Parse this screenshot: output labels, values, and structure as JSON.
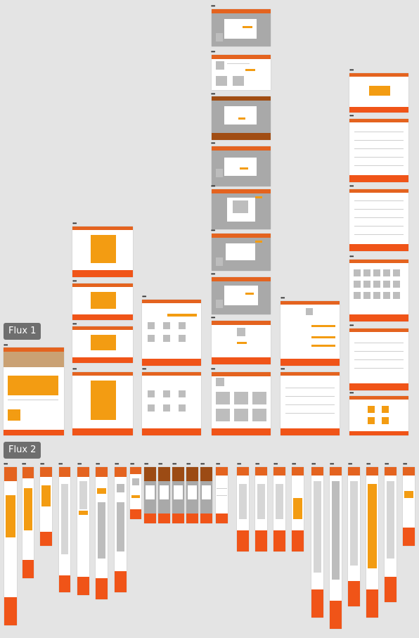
{
  "canvas": {
    "background": "#e4e4e4"
  },
  "flows": [
    {
      "label": "Flux 1"
    },
    {
      "label": "Flux 2"
    }
  ],
  "colors": {
    "header": "#e4631f",
    "footer": "#f05418",
    "accent": "#f39c12",
    "overlay": "#a9a9a9",
    "dark_header": "#9c4b14"
  },
  "artboard_menu_icon": "more-dots-icon"
}
